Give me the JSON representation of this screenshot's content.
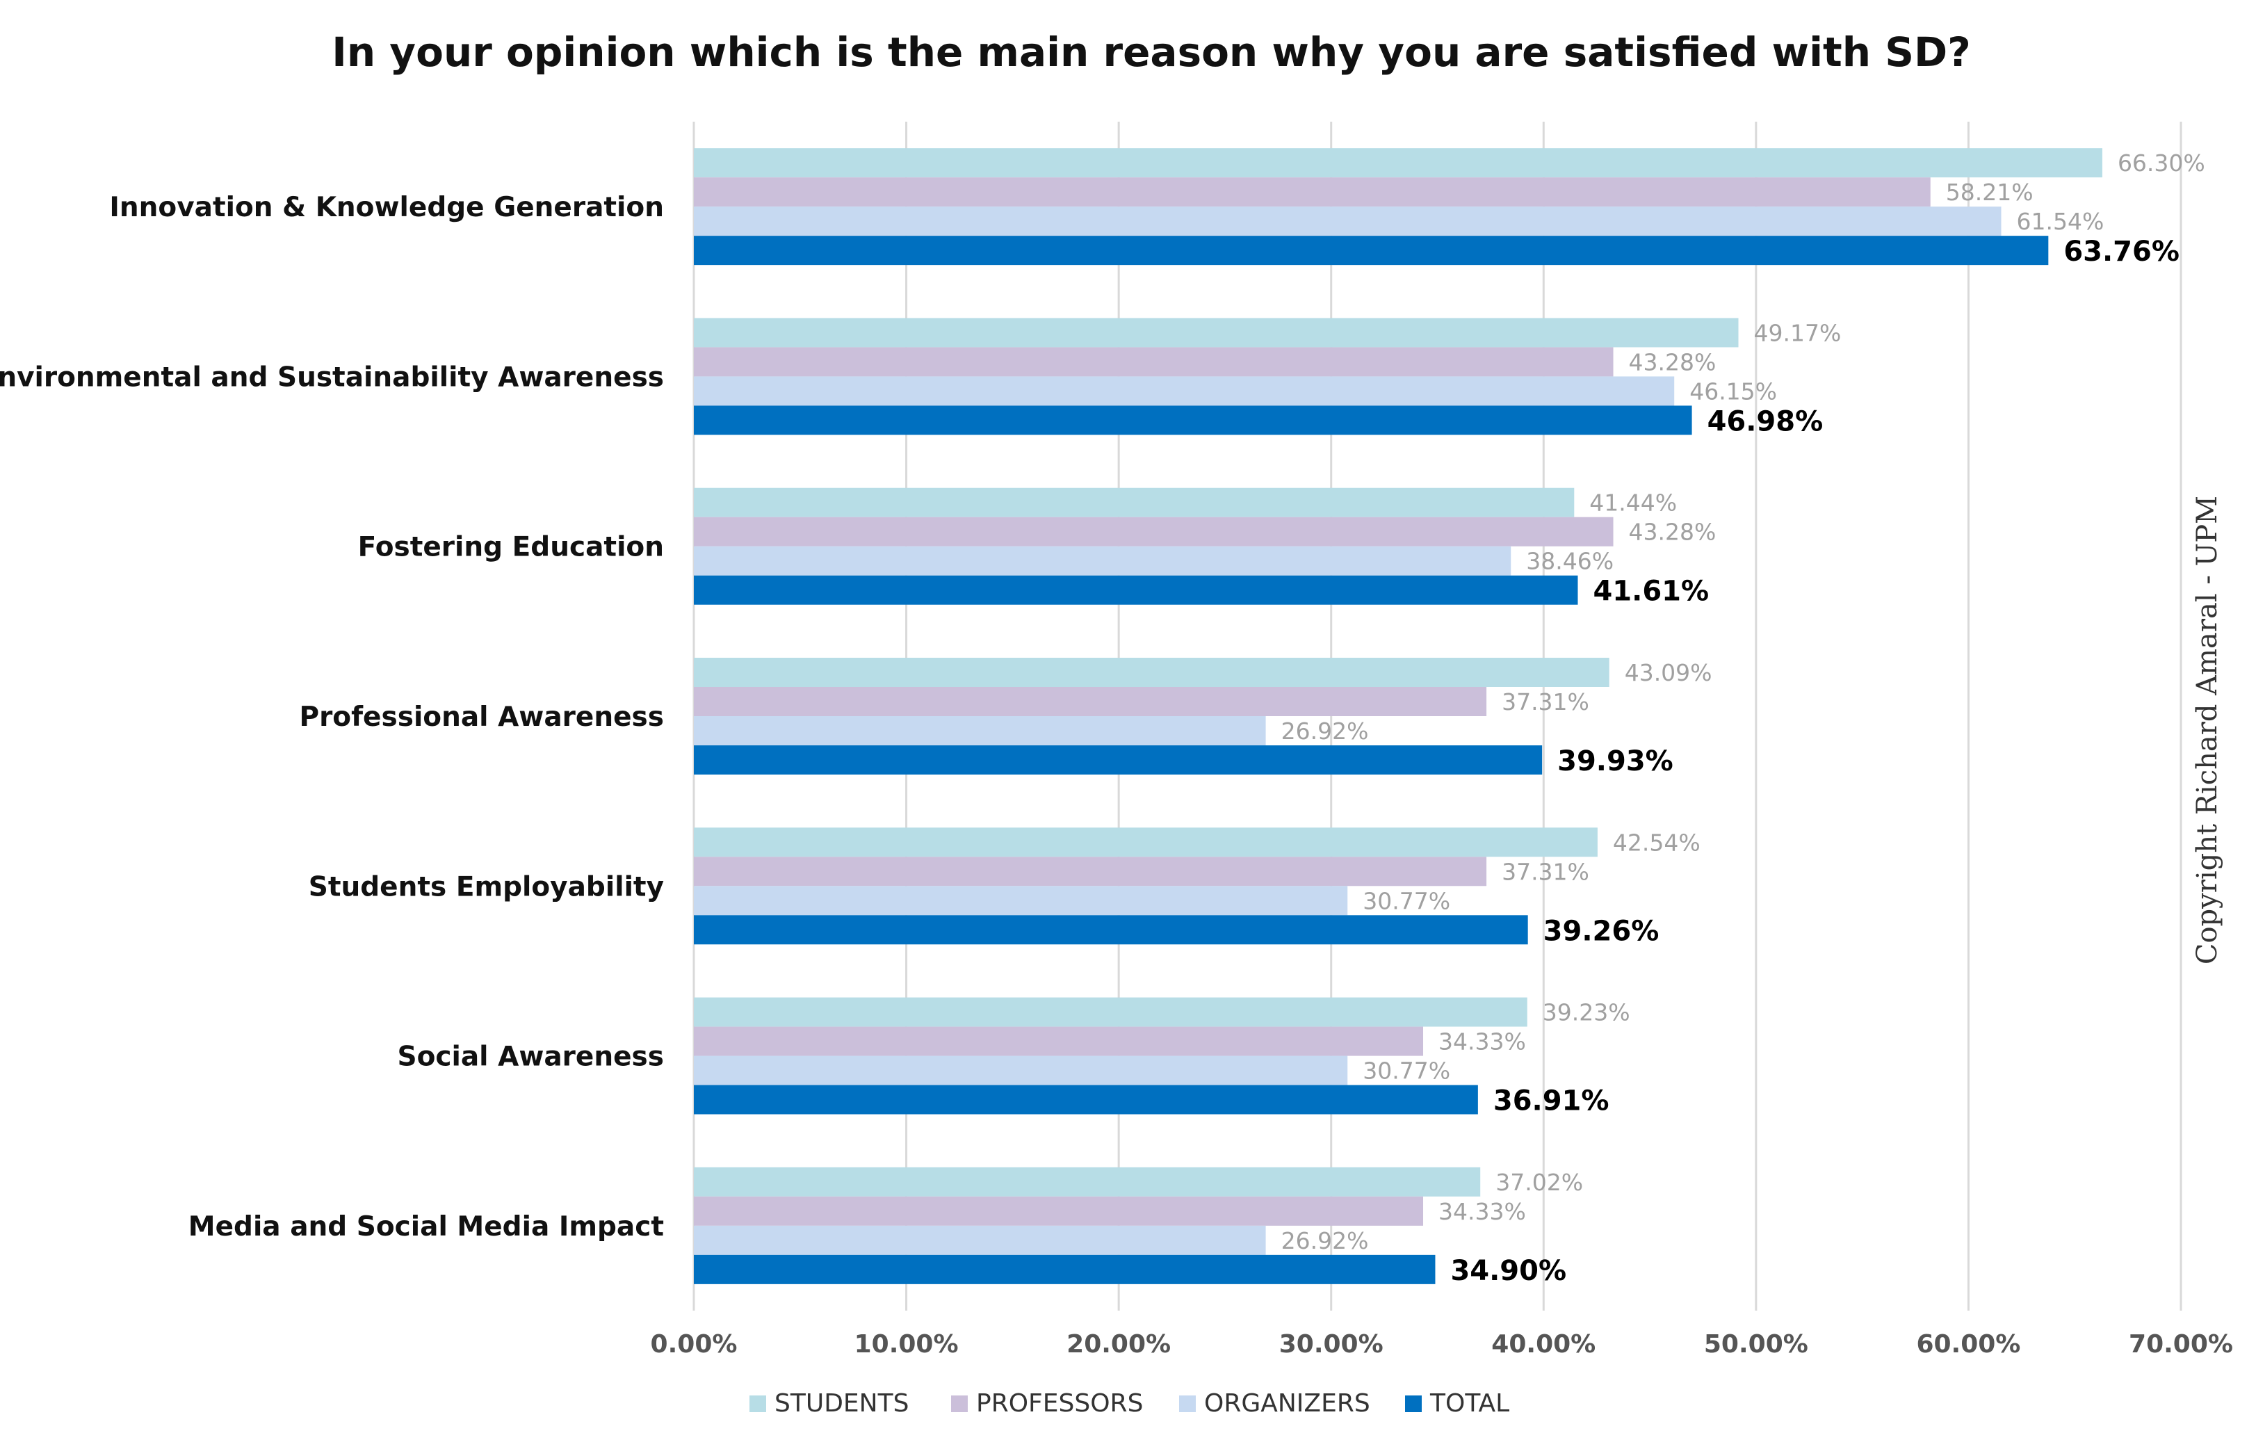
{
  "chart_data": {
    "type": "bar",
    "orientation": "horizontal",
    "title": "In your opinion which is the main reason why you are satisfied with SD?",
    "categories": [
      "Innovation & Knowledge Generation",
      "Environmental and Sustainability Awareness",
      "Fostering Education",
      "Professional Awareness",
      "Students Employability",
      "Social Awareness",
      "Media and Social Media Impact"
    ],
    "series": [
      {
        "name": "STUDENTS",
        "color": "#b7dde6",
        "values": [
          66.3,
          49.17,
          41.44,
          43.09,
          42.54,
          39.23,
          37.02
        ],
        "labels": [
          "66.30%",
          "49.17%",
          "41.44%",
          "43.09%",
          "42.54%",
          "39.23%",
          "37.02%"
        ]
      },
      {
        "name": "PROFESSORS",
        "color": "#cbbfda",
        "values": [
          58.21,
          43.28,
          43.28,
          37.31,
          37.31,
          34.33,
          34.33
        ],
        "labels": [
          "58.21%",
          "43.28%",
          "43.28%",
          "37.31%",
          "37.31%",
          "34.33%",
          "34.33%"
        ]
      },
      {
        "name": "ORGANIZERS",
        "color": "#c6d9f1",
        "values": [
          61.54,
          46.15,
          38.46,
          26.92,
          30.77,
          30.77,
          26.92
        ],
        "labels": [
          "61.54%",
          "46.15%",
          "38.46%",
          "26.92%",
          "30.77%",
          "30.77%",
          "26.92%"
        ]
      },
      {
        "name": "TOTAL",
        "color": "#0070c0",
        "values": [
          63.76,
          46.98,
          41.61,
          39.93,
          39.26,
          36.91,
          34.9
        ],
        "labels": [
          "63.76%",
          "46.98%",
          "41.61%",
          "39.93%",
          "39.26%",
          "36.91%",
          "34.90%"
        ]
      }
    ],
    "xlim": [
      0,
      70
    ],
    "xticks": [
      0,
      10,
      20,
      30,
      40,
      50,
      60,
      70
    ],
    "xtick_labels": [
      "0.00%",
      "10.00%",
      "20.00%",
      "30.00%",
      "40.00%",
      "50.00%",
      "60.00%",
      "70.00%"
    ],
    "grid": "vertical",
    "legend_position": "bottom"
  },
  "watermark": "Copyright Richard Amaral - UPM"
}
